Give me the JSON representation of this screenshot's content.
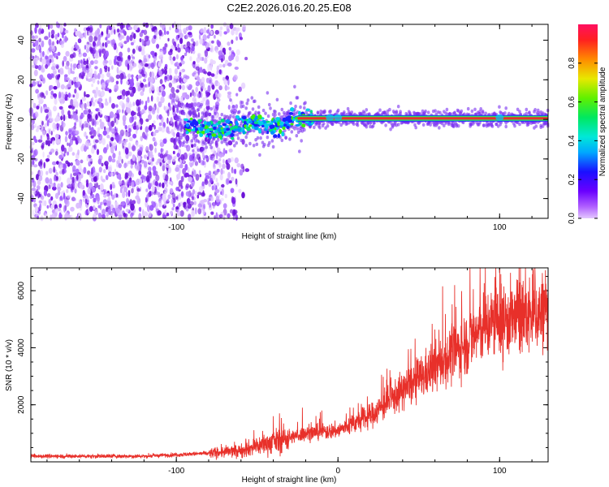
{
  "title": "C2E2.2026.016.20.25.E08",
  "colors": {
    "snr_line": "#e8302a",
    "spectrogram_noise": "#7a1fe6",
    "spectrogram_signal": "#e8302a",
    "axes": "#000000"
  },
  "chart_data": [
    {
      "type": "heatmap",
      "name": "spectrogram",
      "xlabel": "Height of straight line (km)",
      "ylabel": "Frequency (Hz)",
      "xlim": [
        -190,
        130
      ],
      "ylim": [
        -50,
        48
      ],
      "x_ticks": [
        -100,
        0,
        100
      ],
      "x_tick_labels": [
        "-100",
        "",
        "100"
      ],
      "y_ticks": [
        -40,
        -20,
        0,
        20,
        40
      ],
      "y_tick_labels": [
        "-40",
        "-20",
        "0",
        "20",
        "40"
      ],
      "colorbar": {
        "label": "Normalized spectral amplitude",
        "range": [
          0,
          1
        ],
        "ticks": [
          0.0,
          0.2,
          0.4,
          0.6,
          0.8
        ],
        "tick_labels": [
          "0.0",
          "0.2",
          "0.4",
          "0.6",
          "0.8"
        ],
        "colormap": "rainbow (violet low to red high)"
      },
      "features": {
        "noise_region_x": [
          -190,
          -55
        ],
        "signal_onset_x": -55,
        "signal_frequency_hz": 0,
        "signal_trace": [
          [
            -100,
            0
          ],
          [
            -85,
            -4
          ],
          [
            -70,
            -6
          ],
          [
            -55,
            -2
          ],
          [
            -40,
            -4
          ],
          [
            -25,
            0
          ],
          [
            0,
            0.5
          ],
          [
            50,
            0.5
          ],
          [
            100,
            0.5
          ],
          [
            130,
            0.5
          ]
        ]
      }
    },
    {
      "type": "line",
      "name": "snr",
      "xlabel": "Height of straight line (km)",
      "ylabel": "SNR (10 * v/v)",
      "xlim": [
        -190,
        130
      ],
      "ylim": [
        0,
        6800
      ],
      "x_ticks": [
        -100,
        0,
        100
      ],
      "x_tick_labels": [
        "-100",
        "0",
        "100"
      ],
      "y_ticks": [
        2000,
        4000,
        6000
      ],
      "y_tick_labels": [
        "2000",
        "4000",
        "6000"
      ],
      "series": [
        {
          "trend": [
            [
              -190,
              200
            ],
            [
              -120,
              200
            ],
            [
              -80,
              300
            ],
            [
              -60,
              400
            ],
            [
              -40,
              700
            ],
            [
              -20,
              1000
            ],
            [
              0,
              1100
            ],
            [
              20,
              1600
            ],
            [
              40,
              2500
            ],
            [
              60,
              3300
            ],
            [
              80,
              4200
            ],
            [
              90,
              4700
            ],
            [
              100,
              5000
            ],
            [
              110,
              5000
            ],
            [
              130,
              5300
            ]
          ],
          "spikes": [
            [
              100,
              6750
            ],
            [
              102,
              3200
            ],
            [
              -40,
              1600
            ],
            [
              -22,
              1900
            ],
            [
              -10,
              1800
            ]
          ]
        }
      ]
    }
  ]
}
